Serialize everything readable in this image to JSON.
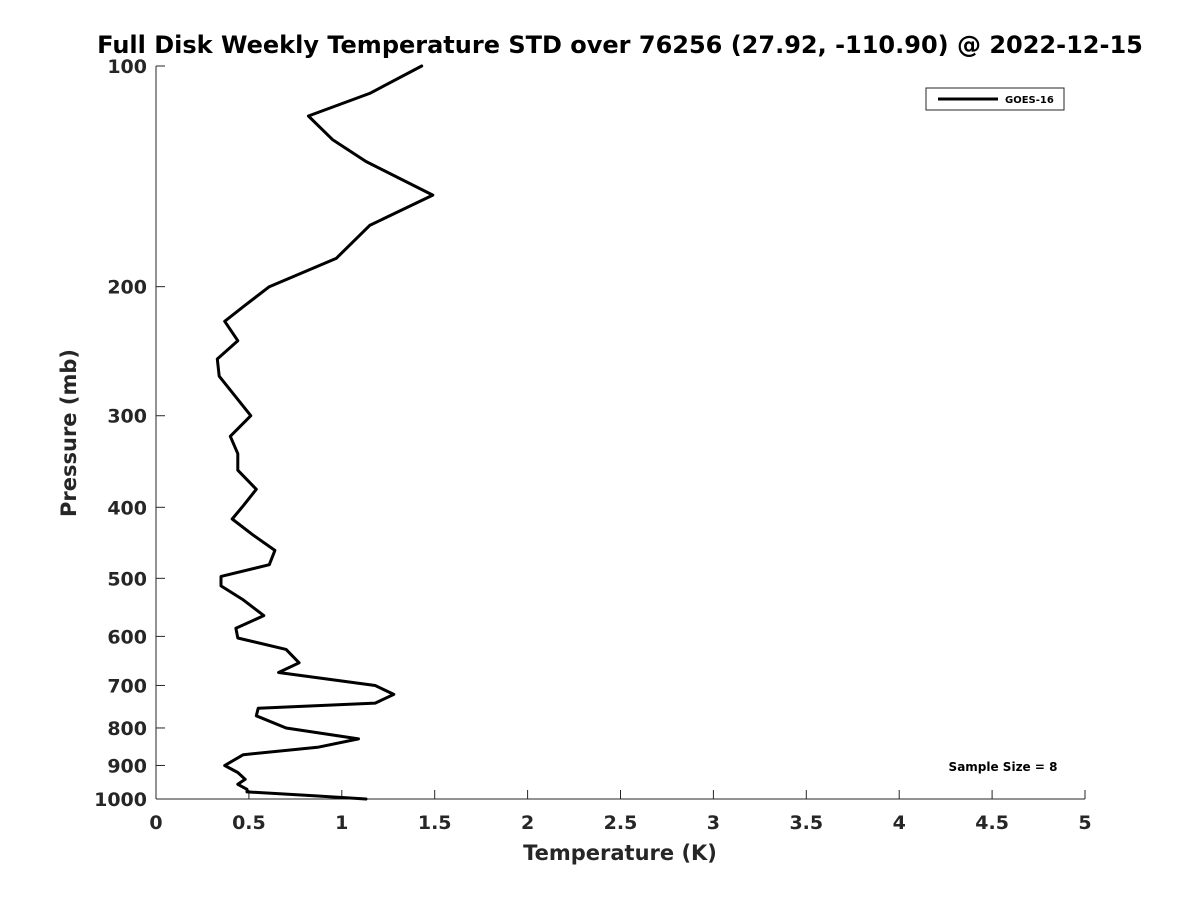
{
  "chart_data": {
    "type": "line",
    "title": "Full Disk Weekly Temperature STD over 76256 (27.92, -110.90) @ 2022-12-15",
    "xlabel": "Temperature (K)",
    "ylabel": "Pressure (mb)",
    "xlim": [
      0,
      5
    ],
    "ylim": [
      100,
      1000
    ],
    "y_scale": "log",
    "y_reversed": true,
    "x_ticks": [
      0,
      0.5,
      1,
      1.5,
      2,
      2.5,
      3,
      3.5,
      4,
      4.5,
      5
    ],
    "x_tick_labels": [
      "0",
      "0.5",
      "1",
      "1.5",
      "2",
      "2.5",
      "3",
      "3.5",
      "4",
      "4.5",
      "5"
    ],
    "y_ticks": [
      100,
      200,
      300,
      400,
      500,
      600,
      700,
      800,
      900,
      1000
    ],
    "y_tick_labels": [
      "100",
      "200",
      "300",
      "400",
      "500",
      "600",
      "700",
      "800",
      "900",
      "1000"
    ],
    "grid": false,
    "legend_position": "top-right",
    "annotation": "Sample Size = 8",
    "series": [
      {
        "name": "GOES-16",
        "color": "#000000",
        "points": [
          [
            1.43,
            100
          ],
          [
            1.15,
            109
          ],
          [
            0.82,
            117
          ],
          [
            0.95,
            126
          ],
          [
            1.13,
            135
          ],
          [
            1.49,
            150
          ],
          [
            1.15,
            165
          ],
          [
            0.97,
            183
          ],
          [
            0.61,
            200
          ],
          [
            0.48,
            212
          ],
          [
            0.37,
            223
          ],
          [
            0.44,
            237
          ],
          [
            0.33,
            251
          ],
          [
            0.34,
            265
          ],
          [
            0.51,
            300
          ],
          [
            0.4,
            320
          ],
          [
            0.44,
            338
          ],
          [
            0.44,
            356
          ],
          [
            0.54,
            378
          ],
          [
            0.47,
            398
          ],
          [
            0.41,
            415
          ],
          [
            0.52,
            436
          ],
          [
            0.64,
            458
          ],
          [
            0.61,
            479
          ],
          [
            0.35,
            497
          ],
          [
            0.35,
            512
          ],
          [
            0.47,
            535
          ],
          [
            0.58,
            562
          ],
          [
            0.43,
            585
          ],
          [
            0.44,
            603
          ],
          [
            0.7,
            625
          ],
          [
            0.77,
            652
          ],
          [
            0.66,
            672
          ],
          [
            1.18,
            700
          ],
          [
            1.28,
            720
          ],
          [
            1.18,
            740
          ],
          [
            0.55,
            752
          ],
          [
            0.54,
            770
          ],
          [
            0.7,
            800
          ],
          [
            1.09,
            828
          ],
          [
            0.87,
            850
          ],
          [
            0.47,
            870
          ],
          [
            0.37,
            900
          ],
          [
            0.44,
            920
          ],
          [
            0.48,
            940
          ],
          [
            0.44,
            955
          ],
          [
            0.49,
            970
          ],
          [
            0.49,
            978
          ],
          [
            0.85,
            990
          ],
          [
            1.13,
            1000
          ]
        ]
      }
    ]
  }
}
